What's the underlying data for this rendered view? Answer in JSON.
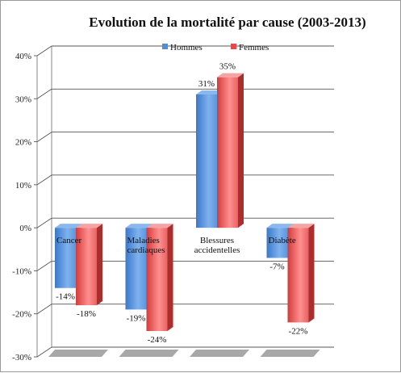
{
  "chart_data": {
    "type": "bar",
    "title": "Evolution de la mortalité par cause (2003-2013)",
    "categories": [
      "Cancer",
      "Maladies cardiaques",
      "Blessures accidentelles",
      "Diabète"
    ],
    "category_lines": [
      [
        "Cancer"
      ],
      [
        "Maladies",
        "cardiaques"
      ],
      [
        "Blessures",
        "accidentelles"
      ],
      [
        "Diabète"
      ]
    ],
    "series": [
      {
        "name": "Hommes",
        "values": [
          -14,
          -19,
          31,
          -7
        ],
        "labels": [
          "-14%",
          "-19%",
          "31%",
          "-7%"
        ],
        "color": "#4f8ed8"
      },
      {
        "name": "Femmes",
        "values": [
          -18,
          -24,
          35,
          -22
        ],
        "labels": [
          "-18%",
          "-24%",
          "35%",
          "-22%"
        ],
        "color": "#e24a4a"
      }
    ],
    "ylim": [
      -30,
      40
    ],
    "yticks": [
      40,
      30,
      20,
      10,
      0,
      -10,
      -20,
      -30
    ],
    "ytick_labels": [
      "40%",
      "30%",
      "20%",
      "10%",
      "0%",
      "-10%",
      "-20%",
      "-30%"
    ],
    "xlabel": "",
    "ylabel": "",
    "grid": true,
    "legend_position": "top"
  }
}
